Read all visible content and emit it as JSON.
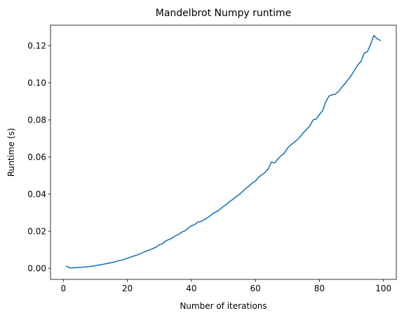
{
  "chart_data": {
    "type": "line",
    "title": "Mandelbrot Numpy runtime",
    "xlabel": "Number of iterations",
    "ylabel": "Runtime (s)",
    "xlim": [
      -4,
      104
    ],
    "ylim": [
      -0.006,
      0.131
    ],
    "xticks": [
      0,
      20,
      40,
      60,
      80,
      100
    ],
    "xtick_labels": [
      "0",
      "20",
      "40",
      "60",
      "80",
      "100"
    ],
    "yticks": [
      0.0,
      0.02,
      0.04,
      0.06,
      0.08,
      0.1,
      0.12
    ],
    "ytick_labels": [
      "0.00",
      "0.02",
      "0.04",
      "0.06",
      "0.08",
      "0.10",
      "0.12"
    ],
    "grid": false,
    "series": [
      {
        "color": "#1f77b4",
        "x": [
          1,
          2,
          3,
          4,
          5,
          6,
          7,
          8,
          9,
          10,
          11,
          12,
          13,
          14,
          15,
          16,
          17,
          18,
          19,
          20,
          21,
          22,
          23,
          24,
          25,
          26,
          27,
          28,
          29,
          30,
          31,
          32,
          33,
          34,
          35,
          36,
          37,
          38,
          39,
          40,
          41,
          42,
          43,
          44,
          45,
          46,
          47,
          48,
          49,
          50,
          51,
          52,
          53,
          54,
          55,
          56,
          57,
          58,
          59,
          60,
          61,
          62,
          63,
          64,
          65,
          66,
          67,
          68,
          69,
          70,
          71,
          72,
          73,
          74,
          75,
          76,
          77,
          78,
          79,
          80,
          81,
          82,
          83,
          84,
          85,
          86,
          87,
          88,
          89,
          90,
          91,
          92,
          93,
          94,
          95,
          96,
          97,
          98,
          99
        ],
        "y": [
          0.0011,
          0.0002,
          0.0002,
          0.0004,
          0.0005,
          0.0006,
          0.0007,
          0.0009,
          0.0011,
          0.0014,
          0.0017,
          0.002,
          0.0023,
          0.0027,
          0.003,
          0.0034,
          0.0039,
          0.0043,
          0.0048,
          0.0054,
          0.006,
          0.0066,
          0.0071,
          0.0078,
          0.0086,
          0.0093,
          0.0099,
          0.0106,
          0.0114,
          0.0127,
          0.0133,
          0.0147,
          0.0155,
          0.0163,
          0.0175,
          0.0182,
          0.0195,
          0.0202,
          0.0216,
          0.0229,
          0.0235,
          0.0248,
          0.0252,
          0.0262,
          0.0272,
          0.0285,
          0.0298,
          0.0306,
          0.0319,
          0.0333,
          0.0345,
          0.036,
          0.0372,
          0.0386,
          0.0398,
          0.0413,
          0.043,
          0.0443,
          0.0459,
          0.047,
          0.0491,
          0.0504,
          0.0516,
          0.0536,
          0.0573,
          0.0567,
          0.0588,
          0.0607,
          0.0619,
          0.0647,
          0.0664,
          0.0677,
          0.0692,
          0.071,
          0.0731,
          0.0749,
          0.0768,
          0.0799,
          0.0805,
          0.0829,
          0.0849,
          0.0899,
          0.0928,
          0.0935,
          0.0939,
          0.0954,
          0.0976,
          0.0996,
          0.1018,
          0.1041,
          0.1069,
          0.1096,
          0.1116,
          0.116,
          0.1168,
          0.1208,
          0.1255,
          0.1237,
          0.1228
        ]
      }
    ]
  }
}
